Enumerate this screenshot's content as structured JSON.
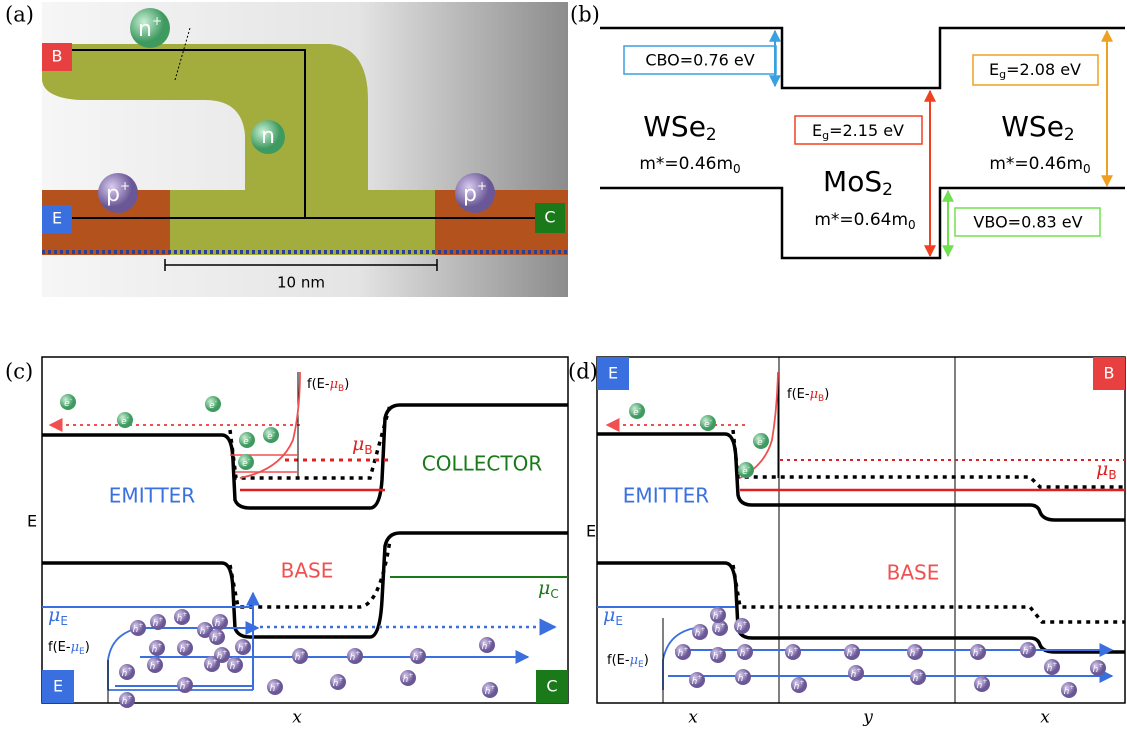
{
  "panel_a": {
    "label": "(a)",
    "terminals": {
      "base": "B",
      "emitter": "E",
      "collector": "C"
    },
    "regions": {
      "n_plus": [
        "n",
        "+"
      ],
      "n": "n",
      "p_plus_left": [
        "p",
        "+"
      ],
      "p_plus_right": [
        "p",
        "+"
      ]
    },
    "scale_bar": "10 nm"
  },
  "panel_b": {
    "label": "(b)",
    "cbo": "CBO=0.76 eV",
    "vbo": "VBO=0.83 eV",
    "gap_mos2": [
      "E",
      "g",
      "=2.15 eV"
    ],
    "gap_wse2": [
      "E",
      "g",
      "=2.08 eV"
    ],
    "wse2_left": {
      "name": [
        "WSe",
        "2"
      ],
      "mass": [
        "m*=0.46m",
        "0"
      ]
    },
    "mos2": {
      "name": [
        "MoS",
        "2"
      ],
      "mass": [
        "m*=0.64m",
        "0"
      ]
    },
    "wse2_right": {
      "name": [
        "WSe",
        "2"
      ],
      "mass": [
        "m*=0.46m",
        "0"
      ]
    }
  },
  "panel_c": {
    "label": "(c)",
    "energy_axis": "E",
    "x_axis": "x",
    "regions": {
      "emitter": "EMITTER",
      "base": "BASE",
      "collector": "COLLECTOR"
    },
    "mu_b": [
      "μ",
      "B"
    ],
    "mu_e": [
      "μ",
      "E"
    ],
    "mu_c": [
      "μ",
      "C"
    ],
    "fermi_b": [
      "f(E-",
      "μ",
      "B",
      ")"
    ],
    "fermi_e": [
      "f(E-",
      "μ",
      "E",
      ")"
    ],
    "terminals": {
      "emitter": "E",
      "collector": "C"
    },
    "electron": [
      "e",
      "-"
    ],
    "hole": [
      "h",
      "+"
    ]
  },
  "panel_d": {
    "label": "(d)",
    "energy_axis": "E",
    "x_axes": [
      "x",
      "y",
      "x"
    ],
    "regions": {
      "emitter": "EMITTER",
      "base": "BASE"
    },
    "mu_b": [
      "μ",
      "B"
    ],
    "mu_e": [
      "μ",
      "E"
    ],
    "fermi_b": [
      "f(E-",
      "μ",
      "B",
      ")"
    ],
    "fermi_e": [
      "f(E-",
      "μ",
      "E",
      ")"
    ],
    "terminals": {
      "emitter": "E",
      "base": "B"
    },
    "electron": [
      "e",
      "-"
    ],
    "hole": [
      "h",
      "+"
    ]
  }
}
